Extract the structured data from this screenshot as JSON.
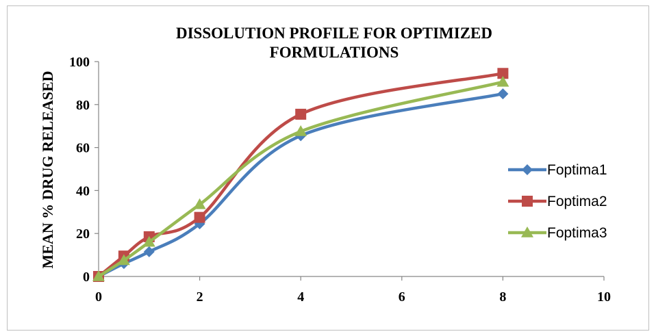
{
  "chart_data": {
    "type": "line",
    "title_line1": "DISSOLUTION PROFILE FOR OPTIMIZED",
    "title_line2": "FORMULATIONS",
    "xlabel": "",
    "ylabel": "MEAN % DRUG RELEASED",
    "xlim": [
      0,
      10
    ],
    "ylim": [
      0,
      100
    ],
    "x_ticks": [
      0,
      2,
      4,
      6,
      8,
      10
    ],
    "y_ticks": [
      0,
      20,
      40,
      60,
      80,
      100
    ],
    "grid": false,
    "legend_position": "right",
    "x": [
      0,
      0.5,
      1,
      2,
      4,
      8
    ],
    "series": [
      {
        "name": "Foptima1",
        "marker": "diamond",
        "color": "#4a7ebb",
        "values": [
          0,
          6,
          11.5,
          24.5,
          65.5,
          85
        ]
      },
      {
        "name": "Foptima2",
        "marker": "square",
        "color": "#be4b48",
        "values": [
          0,
          9.5,
          18.5,
          27.5,
          75.5,
          94.5
        ]
      },
      {
        "name": "Foptima3",
        "marker": "triangle",
        "color": "#98b954",
        "values": [
          0,
          7.5,
          16,
          33.5,
          67.5,
          90.5
        ]
      }
    ]
  }
}
